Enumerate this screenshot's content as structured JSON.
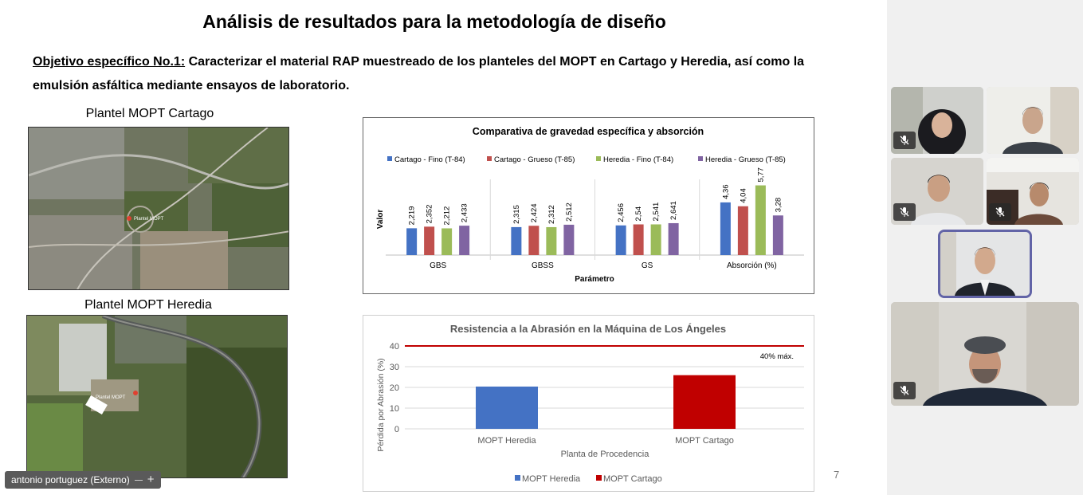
{
  "slide": {
    "title": "Análisis de resultados para la metodología de diseño",
    "objective_label": "Objetivo específico No.1:",
    "objective_text": " Caracterizar el material RAP muestreado de los planteles del MOPT en Cartago y Heredia, así como la emulsión asfáltica mediante ensayos de laboratorio.",
    "map1_caption": "Plantel MOPT Cartago",
    "map2_caption": "Plantel MOPT Heredia",
    "map1_pin_label": "Plantel MOPT",
    "map2_pin_label": "Plantel MOPT",
    "page_number": "7"
  },
  "chart_data": [
    {
      "type": "bar",
      "title": "Comparativa de gravedad específica y absorción",
      "xlabel": "Parámetro",
      "ylabel": "Valor",
      "categories": [
        "GBS",
        "GBSS",
        "GS",
        "Absorción (%)"
      ],
      "series": [
        {
          "name": "Cartago - Fino (T-84)",
          "color": "#4472c4",
          "values": [
            2.219,
            2.315,
            2.456,
            4.36
          ],
          "labels": [
            "2,219",
            "2,315",
            "2,456",
            "4,36"
          ]
        },
        {
          "name": "Cartago - Grueso (T-85)",
          "color": "#c0504d",
          "values": [
            2.352,
            2.424,
            2.54,
            4.04
          ],
          "labels": [
            "2,352",
            "2,424",
            "2,54",
            "4,04"
          ]
        },
        {
          "name": "Heredia - Fino (T-84)",
          "color": "#9bbb59",
          "values": [
            2.212,
            2.312,
            2.541,
            5.77
          ],
          "labels": [
            "2,212",
            "2,312",
            "2,541",
            "5,77"
          ]
        },
        {
          "name": "Heredia - Grueso (T-85)",
          "color": "#8064a2",
          "values": [
            2.433,
            2.512,
            2.641,
            3.28
          ],
          "labels": [
            "2,433",
            "2,512",
            "2,641",
            "3,28"
          ]
        }
      ],
      "legend_position": "top",
      "grid": false
    },
    {
      "type": "bar",
      "title": "Resistencia a la Abrasión en la Máquina de Los Ángeles",
      "xlabel": "Planta de Procedencia",
      "ylabel": "Pérdida por Abrasión (%)",
      "categories": [
        "MOPT Heredia",
        "MOPT Cartago"
      ],
      "values": [
        20.4,
        25.9
      ],
      "colors": [
        "#4472c4",
        "#c00000"
      ],
      "ylim": [
        0,
        40
      ],
      "yticks": [
        "0",
        "10",
        "20",
        "30",
        "40"
      ],
      "limit_line": {
        "value": 40,
        "label": "40% máx.",
        "color": "#c00000"
      },
      "legend": [
        {
          "name": "MOPT Heredia",
          "color": "#4472c4"
        },
        {
          "name": "MOPT Cartago",
          "color": "#c00000"
        }
      ],
      "legend_position": "bottom",
      "grid": true
    }
  ],
  "meeting": {
    "presenter_name": "antonio portuguez (Externo)"
  }
}
